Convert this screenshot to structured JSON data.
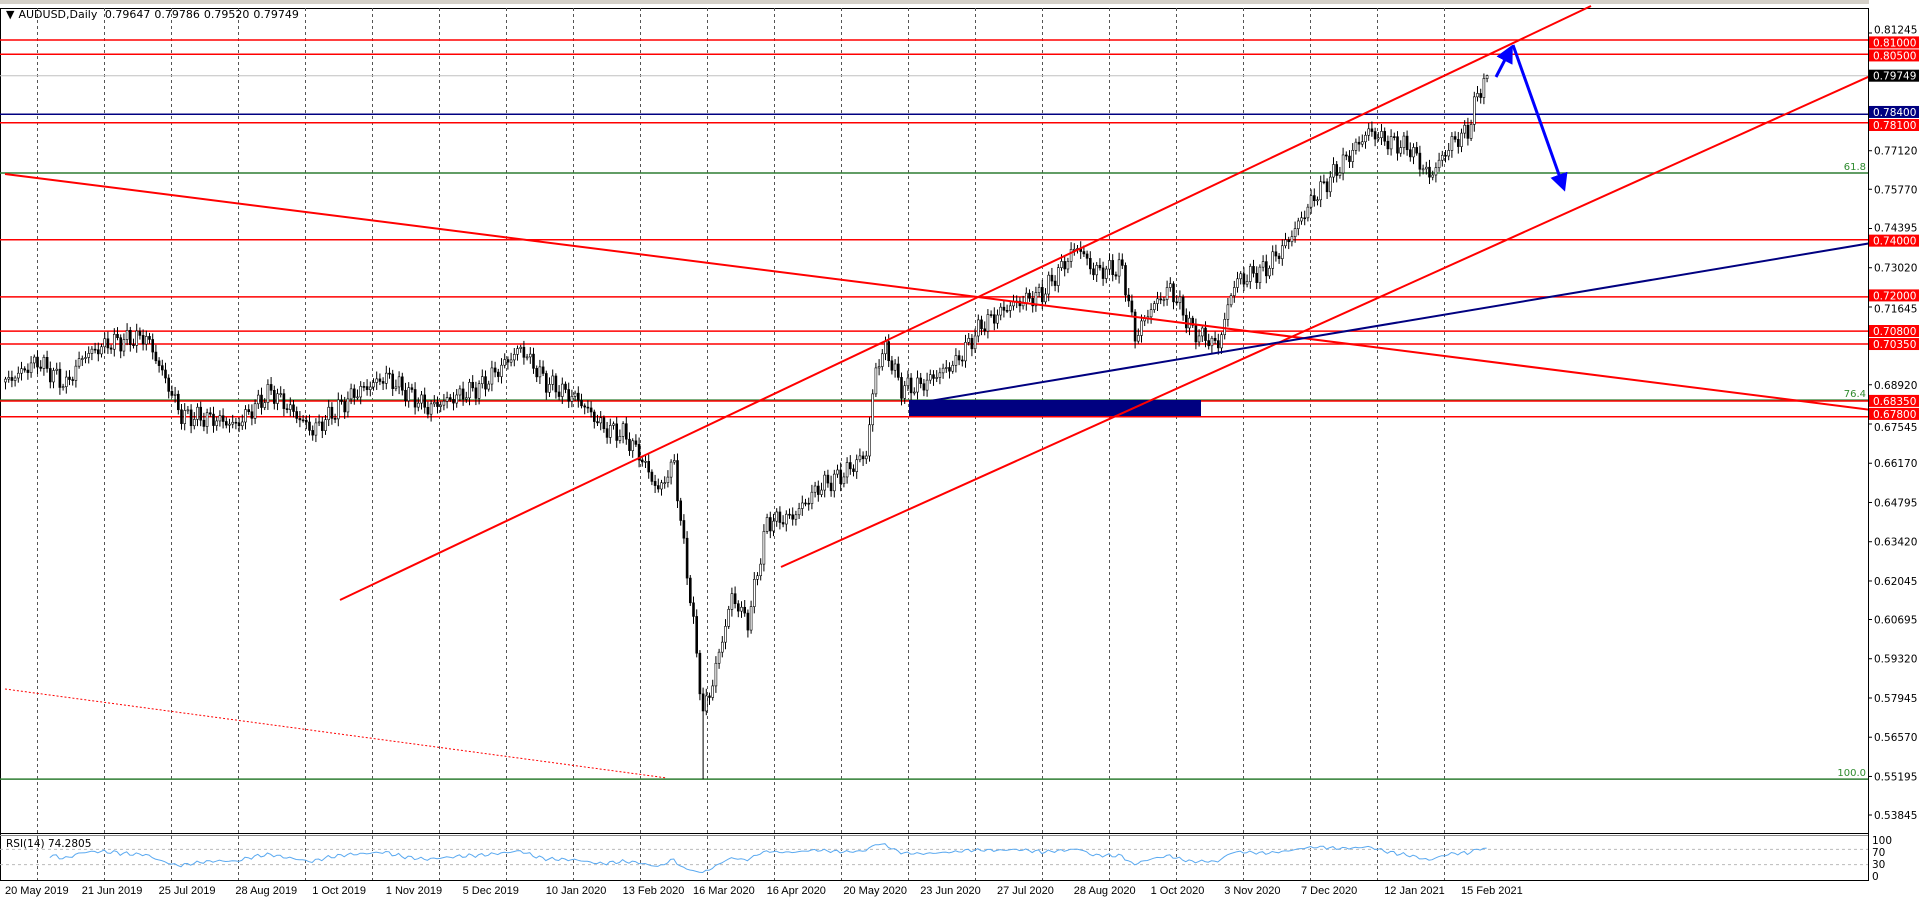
{
  "header": {
    "arrow_icon": "triangle-down",
    "symbol": "AUDUSD,Daily",
    "open": "0.79647",
    "high": "0.79786",
    "low": "0.79520",
    "close": "0.79749"
  },
  "colors": {
    "level_red": "#ff0000",
    "level_navy": "#000080",
    "fib_green": "#2e7d32",
    "arrow_blue": "#0000ff",
    "rsi_line": "#5aa9f0",
    "current_price_box": "#000000"
  },
  "chart_data": {
    "type": "candlestick",
    "symbol": "AUDUSD",
    "timeframe": "Daily",
    "price_axis_ticks": [
      "0.81245",
      "0.77120",
      "0.75770",
      "0.74395",
      "0.73020",
      "0.71645",
      "0.68920",
      "0.67545",
      "0.66170",
      "0.64795",
      "0.63420",
      "0.62045",
      "0.60695",
      "0.59320",
      "0.57945",
      "0.56570",
      "0.55195",
      "0.53845"
    ],
    "time_axis_labels": [
      "20 May 2019",
      "21 Jun 2019",
      "25 Jul 2019",
      "28 Aug 2019",
      "1 Oct 2019",
      "1 Nov 2019",
      "5 Dec 2019",
      "10 Jan 2020",
      "13 Feb 2020",
      "16 Mar 2020",
      "16 Apr 2020",
      "20 May 2020",
      "23 Jun 2020",
      "27 Jul 2020",
      "28 Aug 2020",
      "1 Oct 2020",
      "3 Nov 2020",
      "7 Dec 2020",
      "12 Jan 2021",
      "15 Feb 2021"
    ],
    "time_axis_dates": [
      "2019-05-20",
      "2019-06-21",
      "2019-07-25",
      "2019-08-28",
      "2019-10-01",
      "2019-11-01",
      "2019-12-05",
      "2020-01-10",
      "2020-02-13",
      "2020-03-16",
      "2020-04-16",
      "2020-05-20",
      "2020-06-23",
      "2020-07-27",
      "2020-08-28",
      "2020-10-01",
      "2020-11-03",
      "2020-12-07",
      "2021-01-12",
      "2021-02-15"
    ],
    "close_path": [
      [
        "2019-05-20",
        0.69
      ],
      [
        "2019-06-03",
        0.6975
      ],
      [
        "2019-06-14",
        0.689
      ],
      [
        "2019-06-21",
        0.699
      ],
      [
        "2019-07-04",
        0.704
      ],
      [
        "2019-07-19",
        0.706
      ],
      [
        "2019-07-25",
        0.696
      ],
      [
        "2019-08-05",
        0.6784
      ],
      [
        "2019-08-20",
        0.677
      ],
      [
        "2019-08-28",
        0.675
      ],
      [
        "2019-09-12",
        0.687
      ],
      [
        "2019-10-01",
        0.673
      ],
      [
        "2019-10-18",
        0.686
      ],
      [
        "2019-11-01",
        0.692
      ],
      [
        "2019-11-20",
        0.681
      ],
      [
        "2019-12-03",
        0.685
      ],
      [
        "2019-12-13",
        0.689
      ],
      [
        "2019-12-31",
        0.702
      ],
      [
        "2020-01-10",
        0.69
      ],
      [
        "2020-01-24",
        0.684
      ],
      [
        "2020-02-05",
        0.674
      ],
      [
        "2020-02-13",
        0.672
      ],
      [
        "2020-02-20",
        0.665
      ],
      [
        "2020-02-28",
        0.652
      ],
      [
        "2020-03-06",
        0.662
      ],
      [
        "2020-03-10",
        0.641
      ],
      [
        "2020-03-13",
        0.615
      ],
      [
        "2020-03-19",
        0.574
      ],
      [
        "2020-03-24",
        0.585
      ],
      [
        "2020-04-01",
        0.615
      ],
      [
        "2020-04-08",
        0.606
      ],
      [
        "2020-04-16",
        0.641
      ],
      [
        "2020-04-28",
        0.643
      ],
      [
        "2020-05-08",
        0.653
      ],
      [
        "2020-05-20",
        0.658
      ],
      [
        "2020-05-29",
        0.665
      ],
      [
        "2020-06-03",
        0.695
      ],
      [
        "2020-06-08",
        0.702
      ],
      [
        "2020-06-15",
        0.688
      ],
      [
        "2020-06-23",
        0.689
      ],
      [
        "2020-07-08",
        0.697
      ],
      [
        "2020-07-20",
        0.71
      ],
      [
        "2020-07-31",
        0.717
      ],
      [
        "2020-08-14",
        0.721
      ],
      [
        "2020-08-31",
        0.738
      ],
      [
        "2020-09-07",
        0.729
      ],
      [
        "2020-09-18",
        0.73
      ],
      [
        "2020-09-24",
        0.706
      ],
      [
        "2020-10-01",
        0.716
      ],
      [
        "2020-10-09",
        0.723
      ],
      [
        "2020-10-20",
        0.708
      ],
      [
        "2020-10-30",
        0.703
      ],
      [
        "2020-11-06",
        0.725
      ],
      [
        "2020-11-20",
        0.73
      ],
      [
        "2020-12-01",
        0.74
      ],
      [
        "2020-12-11",
        0.755
      ],
      [
        "2020-12-21",
        0.763
      ],
      [
        "2021-01-05",
        0.778
      ],
      [
        "2021-01-12",
        0.775
      ],
      [
        "2021-01-22",
        0.772
      ],
      [
        "2021-02-01",
        0.762
      ],
      [
        "2021-02-10",
        0.774
      ],
      [
        "2021-02-17",
        0.778
      ],
      [
        "2021-02-22",
        0.791
      ],
      [
        "2021-02-25",
        0.79749
      ]
    ],
    "extremes": [
      {
        "date": "2020-03-19",
        "low": 0.551
      },
      {
        "date": "2019-07-19",
        "high": 0.7082
      },
      {
        "date": "2019-12-31",
        "high": 0.7032
      }
    ],
    "last_bar": {
      "open": 0.79647,
      "high": 0.79786,
      "low": 0.7952,
      "close": 0.79749
    },
    "current_price": {
      "value": 0.79749,
      "label": "0.79749"
    },
    "horizontal_levels": [
      {
        "price": 0.81,
        "label": "0.81000",
        "color": "red"
      },
      {
        "price": 0.805,
        "label": "0.80500",
        "color": "red"
      },
      {
        "price": 0.784,
        "label": "0.78400",
        "color": "navy"
      },
      {
        "price": 0.781,
        "label": "0.78100",
        "color": "red"
      },
      {
        "price": 0.74,
        "label": "0.74000",
        "color": "red"
      },
      {
        "price": 0.72,
        "label": "0.72000",
        "color": "red"
      },
      {
        "price": 0.708,
        "label": "0.70800",
        "color": "red"
      },
      {
        "price": 0.7035,
        "label": "0.70350",
        "color": "red"
      },
      {
        "price": 0.6835,
        "label": "0.68350",
        "color": "red"
      },
      {
        "price": 0.678,
        "label": "0.67800",
        "color": "red"
      }
    ],
    "fibonacci_levels": [
      {
        "price": 0.7634,
        "label": "61.8"
      },
      {
        "price": 0.6838,
        "label": "76.4"
      },
      {
        "price": 0.551,
        "label": "100.0"
      }
    ],
    "indicator": {
      "label": "RSI(14) 74.2805",
      "period": 14,
      "levels": [
        70,
        30
      ],
      "scale_labels": [
        "100",
        "70",
        "30",
        "0"
      ]
    }
  }
}
